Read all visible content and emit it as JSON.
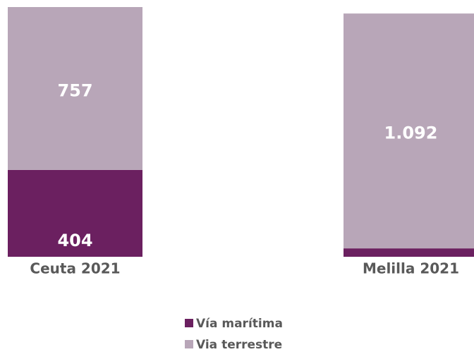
{
  "chart_data": {
    "type": "stacked_bar",
    "categories": [
      "Ceuta 2021",
      "Melilla 2021"
    ],
    "series": [
      {
        "name": "Vía marítima",
        "color": "#6b2060",
        "values": [
          404,
          39
        ]
      },
      {
        "name": "Via terrestre",
        "color": "#b8a6b8",
        "values": [
          757,
          1092
        ],
        "value_labels": [
          "757",
          "1.092"
        ]
      }
    ]
  }
}
